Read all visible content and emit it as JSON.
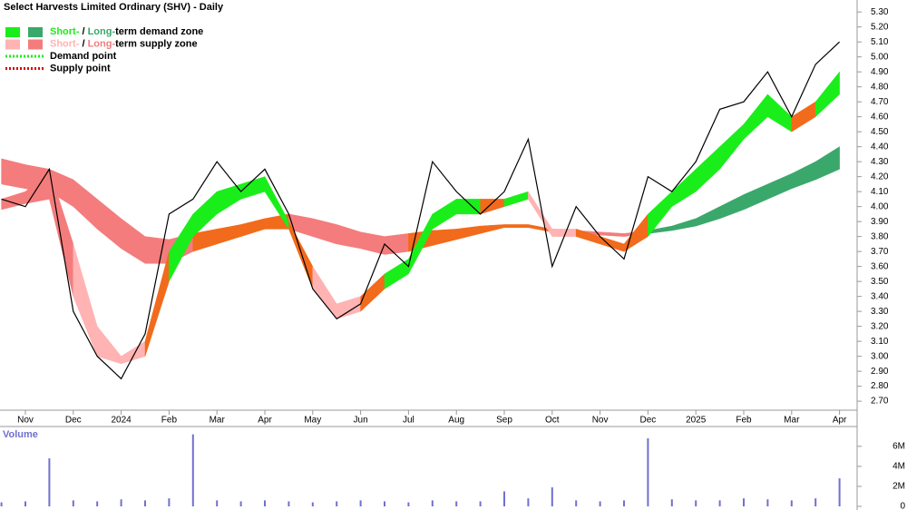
{
  "chart_data": {
    "type": "line",
    "title": "Select Harvests Limited Ordinary (SHV) - Daily",
    "categories": [
      null,
      "Nov",
      null,
      "Dec",
      null,
      "2024",
      null,
      "Feb",
      null,
      "Mar",
      null,
      "Apr",
      null,
      "May",
      null,
      "Jun",
      null,
      "Jul",
      null,
      "Aug",
      null,
      "Sep",
      null,
      "Oct",
      null,
      "Nov",
      null,
      "Dec",
      null,
      "2025",
      null,
      "Feb",
      null,
      "Mar",
      null,
      "Apr"
    ],
    "price": {
      "color": "#000000",
      "values": [
        4.05,
        4.0,
        4.25,
        3.3,
        3.0,
        2.85,
        3.15,
        3.95,
        4.05,
        4.3,
        4.1,
        4.25,
        3.95,
        3.45,
        3.25,
        3.35,
        3.75,
        3.6,
        4.3,
        4.1,
        3.95,
        4.1,
        4.45,
        3.6,
        4.0,
        3.8,
        3.65,
        4.2,
        4.1,
        4.3,
        4.65,
        4.7,
        4.9,
        4.6,
        4.95,
        5.1
      ]
    },
    "zones": [
      {
        "upper": [
          4.32,
          4.28,
          4.25,
          4.18,
          4.05,
          3.92,
          3.8,
          3.78,
          3.82,
          3.85,
          3.88,
          3.92,
          3.95,
          3.92,
          3.88,
          3.83,
          3.8,
          3.82,
          3.84,
          3.85,
          3.87,
          3.88,
          3.88,
          3.85,
          3.84,
          3.83,
          3.82,
          3.84,
          3.87,
          3.92,
          4.0,
          4.08,
          4.15,
          4.22,
          4.3,
          4.4
        ],
        "lower": [
          4.15,
          4.12,
          4.1,
          4.0,
          3.85,
          3.72,
          3.62,
          3.62,
          3.7,
          3.75,
          3.8,
          3.85,
          3.85,
          3.8,
          3.75,
          3.72,
          3.68,
          3.7,
          3.74,
          3.78,
          3.82,
          3.86,
          3.86,
          3.83,
          3.82,
          3.81,
          3.8,
          3.82,
          3.84,
          3.87,
          3.92,
          3.98,
          4.05,
          4.12,
          4.18,
          4.25
        ],
        "colors": [
          "#f47c7c",
          "#f47c7c",
          "#f47c7c",
          "#f47c7c",
          "#f47c7c",
          "#f47c7c",
          "#f47c7c",
          "#f47c7c",
          "#f26a1b",
          "#f26a1b",
          "#f26a1b",
          "#f26a1b",
          "#f47c7c",
          "#f47c7c",
          "#f47c7c",
          "#f47c7c",
          "#f47c7c",
          "#f26a1b",
          "#f26a1b",
          "#f26a1b",
          "#f26a1b",
          "#f26a1b",
          "#f26a1b",
          "#f47c7c",
          "#f47c7c",
          "#f47c7c",
          "#f47c7c",
          "#3aa86b",
          "#3aa86b",
          "#3aa86b",
          "#3aa86b",
          "#3aa86b",
          "#3aa86b",
          "#3aa86b",
          "#3aa86b",
          "#3aa86b"
        ]
      },
      {
        "upper": [
          4.05,
          4.1,
          4.25,
          3.75,
          3.2,
          3.0,
          3.1,
          3.7,
          3.95,
          4.1,
          4.15,
          4.2,
          3.9,
          3.6,
          3.35,
          3.4,
          3.55,
          3.65,
          3.95,
          4.05,
          4.05,
          4.05,
          4.1,
          3.85,
          3.85,
          3.8,
          3.75,
          3.95,
          4.1,
          4.25,
          4.4,
          4.55,
          4.75,
          4.6,
          4.7,
          4.9
        ],
        "lower": [
          3.98,
          4.02,
          4.05,
          3.4,
          3.0,
          2.95,
          3.0,
          3.5,
          3.8,
          3.95,
          4.05,
          4.1,
          3.85,
          3.45,
          3.25,
          3.3,
          3.45,
          3.55,
          3.85,
          3.95,
          3.95,
          4.0,
          4.05,
          3.8,
          3.8,
          3.75,
          3.7,
          3.8,
          4.0,
          4.1,
          4.25,
          4.45,
          4.6,
          4.5,
          4.6,
          4.75
        ],
        "colors": [
          "#f47c7c",
          "#f47c7c",
          "#f47c7c",
          "#ffb3b3",
          "#ffb3b3",
          "#ffb3b3",
          "#f26a1b",
          "#1aee1a",
          "#1aee1a",
          "#1aee1a",
          "#1aee1a",
          "#1aee1a",
          "#f26a1b",
          "#ffb3b3",
          "#ffb3b3",
          "#f26a1b",
          "#1aee1a",
          "#1aee1a",
          "#1aee1a",
          "#1aee1a",
          "#f26a1b",
          "#1aee1a",
          "#ffb3b3",
          "#ffb3b3",
          "#f26a1b",
          "#f26a1b",
          "#f26a1b",
          "#1aee1a",
          "#1aee1a",
          "#1aee1a",
          "#1aee1a",
          "#1aee1a",
          "#1aee1a",
          "#f26a1b",
          "#1aee1a",
          "#1aee1a"
        ]
      }
    ],
    "legend": [
      {
        "swatches": [
          "#1aee1a",
          "#3aa86b"
        ],
        "parts": [
          {
            "text": "Short-",
            "color": "#1aee1a"
          },
          {
            "text": " / ",
            "color": "#000000"
          },
          {
            "text": "Long-",
            "color": "#3aa86b"
          },
          {
            "text": "term demand zone",
            "color": "#000000"
          }
        ]
      },
      {
        "swatches": [
          "#ffb3b3",
          "#f47c7c"
        ],
        "parts": [
          {
            "text": "Short-",
            "color": "#ffb3b3"
          },
          {
            "text": " / ",
            "color": "#000000"
          },
          {
            "text": "Long-",
            "color": "#f47c7c"
          },
          {
            "text": "term supply zone",
            "color": "#000000"
          }
        ]
      },
      {
        "line": "#1aee1a",
        "parts": [
          {
            "text": "Demand point",
            "color": "#000000"
          }
        ]
      },
      {
        "line": "#e00000",
        "parts": [
          {
            "text": "Supply point",
            "color": "#000000"
          }
        ]
      }
    ],
    "ylim": [
      2.64,
      5.38
    ],
    "yticks": [
      {
        "value": 2.7,
        "label": "2.70"
      },
      {
        "value": 2.8,
        "label": "2.80"
      },
      {
        "value": 2.9,
        "label": "2.90"
      },
      {
        "value": 3.0,
        "label": "3.00"
      },
      {
        "value": 3.1,
        "label": "3.10"
      },
      {
        "value": 3.2,
        "label": "3.20"
      },
      {
        "value": 3.3,
        "label": "3.30"
      },
      {
        "value": 3.4,
        "label": "3.40"
      },
      {
        "value": 3.5,
        "label": "3.50"
      },
      {
        "value": 3.6,
        "label": "3.60"
      },
      {
        "value": 3.7,
        "label": "3.70"
      },
      {
        "value": 3.8,
        "label": "3.80"
      },
      {
        "value": 3.9,
        "label": "3.90"
      },
      {
        "value": 4.0,
        "label": "4.00"
      },
      {
        "value": 4.1,
        "label": "4.10"
      },
      {
        "value": 4.2,
        "label": "4.20"
      },
      {
        "value": 4.3,
        "label": "4.30"
      },
      {
        "value": 4.4,
        "label": "4.40"
      },
      {
        "value": 4.5,
        "label": "4.50"
      },
      {
        "value": 4.6,
        "label": "4.60"
      },
      {
        "value": 4.7,
        "label": "4.70"
      },
      {
        "value": 4.8,
        "label": "4.80"
      },
      {
        "value": 4.9,
        "label": "4.90"
      },
      {
        "value": 5.0,
        "label": "5.00"
      },
      {
        "value": 5.1,
        "label": "5.10"
      },
      {
        "value": 5.2,
        "label": "5.20"
      },
      {
        "value": 5.3,
        "label": "5.30"
      }
    ],
    "volume": {
      "label": "Volume",
      "color": "#7070d0",
      "values": [
        0.4,
        0.5,
        4.8,
        0.6,
        0.5,
        0.7,
        0.6,
        0.8,
        7.2,
        0.6,
        0.5,
        0.6,
        0.5,
        0.4,
        0.5,
        0.6,
        0.5,
        0.4,
        0.6,
        0.5,
        0.5,
        1.5,
        0.8,
        1.9,
        0.6,
        0.5,
        0.6,
        6.8,
        0.7,
        0.6,
        0.6,
        0.8,
        0.7,
        0.6,
        0.8,
        2.8
      ],
      "ylim": [
        0,
        7.8
      ],
      "yticks": [
        0,
        {
          "value": 2,
          "label": "2M"
        },
        {
          "value": 4,
          "label": "4M"
        },
        {
          "value": 6,
          "label": "6M"
        }
      ]
    }
  }
}
